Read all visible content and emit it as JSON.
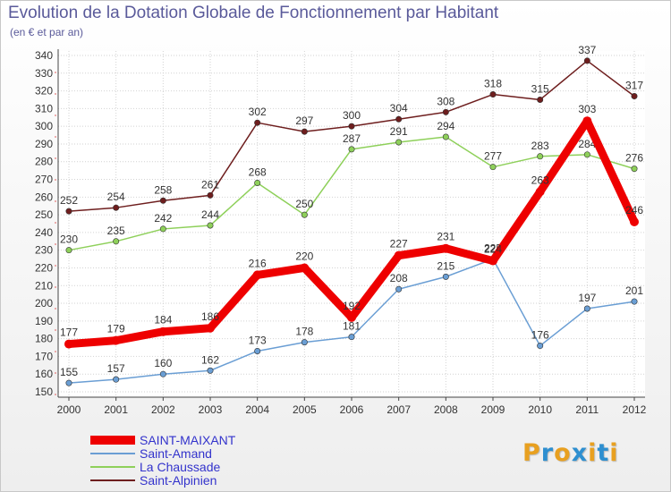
{
  "title": "Evolution de la Dotation Globale de Fonctionnement par Habitant",
  "subtitle": "(en € et par an)",
  "logo": {
    "text": "Proxiti",
    "colors": [
      "#e8a020",
      "#2e8fd0",
      "#e8a020",
      "#2e8fd0",
      "#e8a020",
      "#2e8fd0",
      "#e8a020"
    ]
  },
  "chart_data": {
    "type": "line",
    "title": "Evolution de la Dotation Globale de Fonctionnement par Habitant",
    "ylabel": "(en € et par an)",
    "xlabel": "",
    "grid": true,
    "ylim": [
      150,
      340
    ],
    "yticks": [
      150,
      160,
      170,
      180,
      190,
      200,
      210,
      220,
      230,
      240,
      250,
      260,
      270,
      280,
      290,
      300,
      310,
      320,
      330,
      340
    ],
    "categories": [
      "2000",
      "2001",
      "2002",
      "2003",
      "2004",
      "2005",
      "2006",
      "2007",
      "2008",
      "2009",
      "2010",
      "2011",
      "2012"
    ],
    "legend_position": "bottom-left",
    "series": [
      {
        "name": "Saint-Alpinien",
        "color": "#6e1e1e",
        "values": [
          252,
          254,
          258,
          261,
          302,
          297,
          300,
          304,
          308,
          318,
          315,
          337,
          317
        ]
      },
      {
        "name": "La Chaussade",
        "color": "#8ed05a",
        "values": [
          230,
          235,
          242,
          244,
          268,
          250,
          287,
          291,
          294,
          277,
          283,
          284,
          276
        ]
      },
      {
        "name": "Saint-Amand",
        "color": "#6a9ed4",
        "values": [
          155,
          157,
          160,
          162,
          173,
          178,
          181,
          208,
          215,
          225,
          176,
          197,
          201
        ]
      },
      {
        "name": "SAINT-MAIXANT",
        "color": "#ee0000",
        "values": [
          177,
          179,
          184,
          186,
          216,
          220,
          192,
          227,
          231,
          224,
          263,
          303,
          246
        ]
      }
    ],
    "legend_order": [
      "SAINT-MAIXANT",
      "Saint-Amand",
      "La Chaussade",
      "Saint-Alpinien"
    ]
  }
}
